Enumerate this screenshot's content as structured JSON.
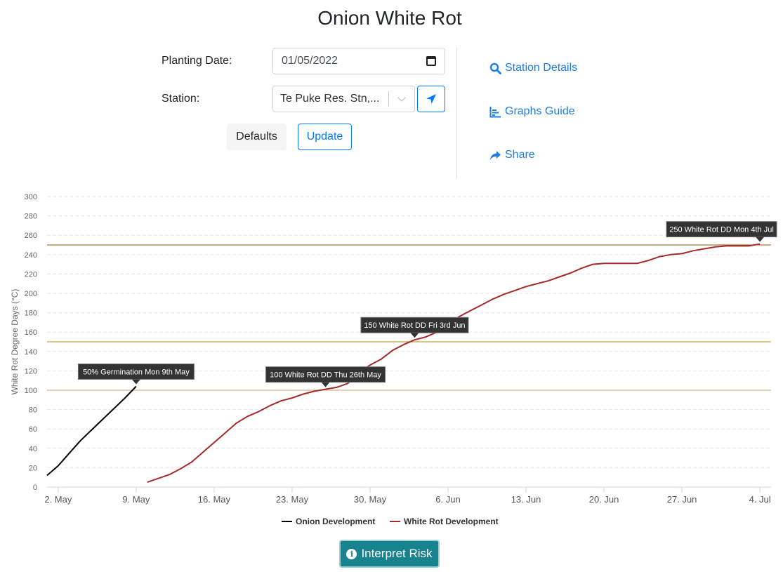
{
  "page": {
    "title": "Onion White Rot"
  },
  "form": {
    "planting_date_label": "Planting Date:",
    "planting_date_value": "01/05/2022",
    "station_label": "Station:",
    "station_value": "Te Puke Res. Stn,...",
    "defaults_label": "Defaults",
    "update_label": "Update"
  },
  "links": {
    "station_details": "Station Details",
    "graphs_guide": "Graphs Guide",
    "share": "Share"
  },
  "colors": {
    "accent": "#007bff",
    "link": "#1a7ee6",
    "onion": "#000000",
    "white_rot": "#a52a2a",
    "threshold": "#b8860b",
    "interpret": "#17838f"
  },
  "interpret_label": "Interpret Risk",
  "chart_data": {
    "type": "line",
    "ylabel": "White Rot Degree Days (°C)",
    "xlabel": "",
    "ylim": [
      0,
      300
    ],
    "yticks": [
      0,
      20,
      40,
      60,
      80,
      100,
      120,
      140,
      160,
      180,
      200,
      220,
      240,
      260,
      280,
      300
    ],
    "xlim": [
      "2022-05-01",
      "2022-07-05"
    ],
    "xticks": [
      {
        "date": "2022-05-02",
        "label": "2. May"
      },
      {
        "date": "2022-05-09",
        "label": "9. May"
      },
      {
        "date": "2022-05-16",
        "label": "16. May"
      },
      {
        "date": "2022-05-23",
        "label": "23. May"
      },
      {
        "date": "2022-05-30",
        "label": "30. May"
      },
      {
        "date": "2022-06-06",
        "label": "6. Jun"
      },
      {
        "date": "2022-06-13",
        "label": "13. Jun"
      },
      {
        "date": "2022-06-20",
        "label": "20. Jun"
      },
      {
        "date": "2022-06-27",
        "label": "27. Jun"
      },
      {
        "date": "2022-07-04",
        "label": "4. Jul"
      }
    ],
    "grid": "horizontal",
    "legend": "bottom-center",
    "thresholds": [
      100,
      150,
      250
    ],
    "series": [
      {
        "name": "Onion Development",
        "color": "#000000",
        "x": [
          "2022-05-01",
          "2022-05-02",
          "2022-05-03",
          "2022-05-04",
          "2022-05-05",
          "2022-05-06",
          "2022-05-07",
          "2022-05-08",
          "2022-05-09"
        ],
        "y": [
          12,
          22,
          35,
          48,
          59,
          70,
          81,
          92,
          104
        ]
      },
      {
        "name": "White Rot Development",
        "color": "#a52a2a",
        "x": [
          "2022-05-10",
          "2022-05-11",
          "2022-05-12",
          "2022-05-13",
          "2022-05-14",
          "2022-05-15",
          "2022-05-16",
          "2022-05-17",
          "2022-05-18",
          "2022-05-19",
          "2022-05-20",
          "2022-05-21",
          "2022-05-22",
          "2022-05-23",
          "2022-05-24",
          "2022-05-25",
          "2022-05-26",
          "2022-05-27",
          "2022-05-28",
          "2022-05-29",
          "2022-05-30",
          "2022-05-31",
          "2022-06-01",
          "2022-06-02",
          "2022-06-03",
          "2022-06-04",
          "2022-06-05",
          "2022-06-06",
          "2022-06-07",
          "2022-06-08",
          "2022-06-09",
          "2022-06-10",
          "2022-06-11",
          "2022-06-12",
          "2022-06-13",
          "2022-06-14",
          "2022-06-15",
          "2022-06-16",
          "2022-06-17",
          "2022-06-18",
          "2022-06-19",
          "2022-06-20",
          "2022-06-21",
          "2022-06-22",
          "2022-06-23",
          "2022-06-24",
          "2022-06-25",
          "2022-06-26",
          "2022-06-27",
          "2022-06-28",
          "2022-06-29",
          "2022-06-30",
          "2022-07-01",
          "2022-07-02",
          "2022-07-03",
          "2022-07-04"
        ],
        "y": [
          5,
          9,
          13,
          19,
          26,
          36,
          46,
          56,
          66,
          73,
          78,
          84,
          89,
          92,
          96,
          99,
          101,
          103,
          107,
          118,
          126,
          132,
          141,
          147,
          152,
          155,
          160,
          168,
          176,
          182,
          188,
          194,
          199,
          203,
          207,
          210,
          213,
          217,
          221,
          226,
          230,
          231,
          231,
          231,
          231,
          234,
          238,
          240,
          241,
          244,
          246,
          248,
          249,
          249,
          249,
          251
        ]
      }
    ],
    "annotations": [
      {
        "label": "50% Germination Mon 9th May",
        "x": "2022-05-09",
        "y": 104
      },
      {
        "label": "100 White Rot DD Thu 26th May",
        "x": "2022-05-26",
        "y": 101
      },
      {
        "label": "150 White Rot DD Fri 3rd Jun",
        "x": "2022-06-03",
        "y": 152
      },
      {
        "label": "250 White Rot DD Mon 4th Jul",
        "x": "2022-07-04",
        "y": 251
      }
    ]
  }
}
